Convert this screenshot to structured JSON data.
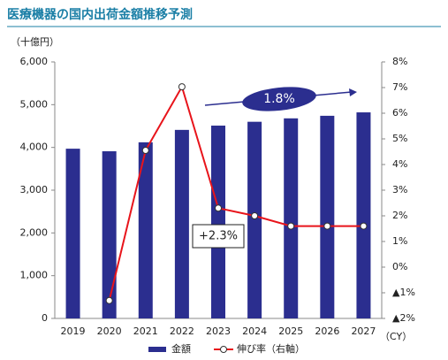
{
  "chart_data": {
    "type": "bar-line",
    "title": "医療機器の国内出荷金額推移予測",
    "y_label": "（十億円）",
    "x_label": "（CY）",
    "categories": [
      "2019",
      "2020",
      "2021",
      "2022",
      "2023",
      "2024",
      "2025",
      "2026",
      "2027"
    ],
    "series": [
      {
        "name": "金額",
        "color": "#2b2e8f",
        "type": "bar",
        "values": [
          3970,
          3910,
          4120,
          4410,
          4510,
          4600,
          4680,
          4740,
          4820
        ]
      },
      {
        "name": "伸び率（右軸）",
        "color": "#e8141b",
        "type": "line",
        "axis": "y2",
        "values": [
          null,
          -1.3,
          4.55,
          7.03,
          2.3,
          2.0,
          1.6,
          1.6,
          1.6
        ]
      }
    ],
    "ylim": [
      0,
      6000
    ],
    "yticks": [
      0,
      {
        "value": 1000,
        "label": "1,000"
      },
      {
        "value": 2000,
        "label": "2,000"
      },
      {
        "value": 3000,
        "label": "3,000"
      },
      {
        "value": 4000,
        "label": "4,000"
      },
      {
        "value": 5000,
        "label": "5,000"
      },
      {
        "value": 6000,
        "label": "6,000"
      }
    ],
    "y2lim": [
      -2,
      8
    ],
    "y2ticks": [
      {
        "value": -2,
        "label": "▲2%"
      },
      {
        "value": -1,
        "label": "▲1%"
      },
      {
        "value": 0,
        "label": "0%"
      },
      {
        "value": 1,
        "label": "1%"
      },
      {
        "value": 2,
        "label": "2%"
      },
      {
        "value": 3,
        "label": "3%"
      },
      {
        "value": 4,
        "label": "4%"
      },
      {
        "value": 5,
        "label": "5%"
      },
      {
        "value": 6,
        "label": "6%"
      },
      {
        "value": 7,
        "label": "7%"
      },
      {
        "value": 8,
        "label": "8%"
      }
    ],
    "annotations": [
      "1.8%",
      "+2.3%"
    ]
  }
}
